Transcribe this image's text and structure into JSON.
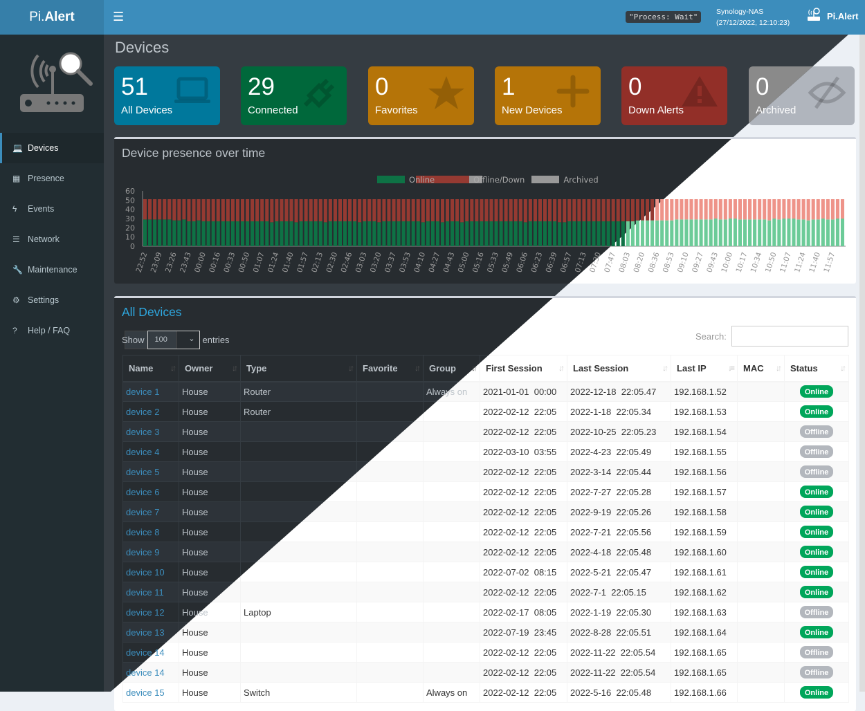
{
  "header": {
    "logo_prefix": "Pi.",
    "logo_main": "Alert",
    "process_status": "\"Process: Wait\"",
    "host_name": "Synology-NAS",
    "host_time": "(27/12/2022, 12:10:23)",
    "brand": "Pi.Alert"
  },
  "sidebar": {
    "items": [
      {
        "label": "Devices",
        "icon": "laptop-icon",
        "glyph": "💻",
        "active": true
      },
      {
        "label": "Presence",
        "icon": "calendar-icon",
        "glyph": "▦"
      },
      {
        "label": "Events",
        "icon": "bolt-icon",
        "glyph": "ϟ"
      },
      {
        "label": "Network",
        "icon": "server-icon",
        "glyph": "☰"
      },
      {
        "label": "Maintenance",
        "icon": "wrench-icon",
        "glyph": "🔧"
      },
      {
        "label": "Settings",
        "icon": "gear-icon",
        "glyph": "⚙"
      },
      {
        "label": "Help / FAQ",
        "icon": "question-icon",
        "glyph": "?"
      }
    ]
  },
  "page_title": "Devices",
  "info_boxes": [
    {
      "value": "51",
      "label": "All Devices",
      "color": "#00789c",
      "icon": "laptop-icon"
    },
    {
      "value": "29",
      "label": "Connected",
      "color": "#00683b",
      "icon": "plug-icon"
    },
    {
      "value": "0",
      "label": "Favorites",
      "color": "#b57408",
      "icon": "star-icon"
    },
    {
      "value": "1",
      "label": "New Devices",
      "color": "#b57408",
      "icon": "plus-icon"
    },
    {
      "value": "0",
      "label": "Down Alerts",
      "color": "#922f28",
      "icon": "warning-icon"
    },
    {
      "value": "0",
      "label": "Archived",
      "color": "#8a8a8a",
      "color_light": "#b0b5bd",
      "icon": "eye-slash-icon"
    }
  ],
  "presence": {
    "title": "Device presence over time"
  },
  "chart_data": {
    "type": "bar",
    "stacked": true,
    "title": "Device presence over time",
    "ylim": [
      0,
      60
    ],
    "yticks": [
      0,
      10,
      20,
      30,
      40,
      50,
      60
    ],
    "legend_position": "top",
    "series_names": [
      "Online",
      "Offline/Down",
      "Archived"
    ],
    "colors": {
      "online_dark": "#0e7245",
      "offline_dark": "#953a32",
      "online_light": "#6ccb98",
      "offline_light": "#ee9389",
      "archived": "#999999"
    },
    "total_devices": 51,
    "tick_labels": [
      "22:52",
      "23:09",
      "23:26",
      "23:43",
      "00:00",
      "00:16",
      "00:33",
      "00:50",
      "01:07",
      "01:24",
      "01:40",
      "01:57",
      "02:13",
      "02:30",
      "02:46",
      "03:03",
      "03:20",
      "03:37",
      "03:53",
      "04:10",
      "04:27",
      "04:43",
      "05:00",
      "05:16",
      "05:33",
      "05:49",
      "06:06",
      "06:23",
      "06:39",
      "06:57",
      "07:13",
      "07:30",
      "07:47",
      "08:03",
      "08:20",
      "08:36",
      "08:53",
      "09:10",
      "09:27",
      "09:43",
      "10:00",
      "10:17",
      "10:34",
      "10:50",
      "11:07",
      "11:24",
      "11:40",
      "11:57"
    ],
    "online": [
      29,
      29,
      29,
      29,
      29,
      29,
      28,
      28,
      29,
      27,
      27,
      28,
      27,
      27,
      27,
      27,
      27,
      27,
      27,
      27,
      27,
      27,
      27,
      27,
      27,
      27,
      26,
      27,
      27,
      27,
      27,
      26,
      27,
      27,
      27,
      27,
      27,
      26,
      27,
      27,
      27,
      27,
      27,
      27,
      26,
      27,
      27,
      27,
      26,
      27,
      27,
      27,
      27,
      27,
      27,
      27,
      27,
      26,
      27,
      27,
      27,
      26,
      27,
      27,
      27,
      26,
      27,
      27,
      27,
      27,
      27,
      27,
      27,
      27,
      27,
      27,
      27,
      27,
      26,
      27,
      27,
      27,
      27,
      27,
      27,
      26,
      26,
      27,
      27,
      27,
      27,
      27,
      27,
      27,
      27,
      27,
      27,
      27,
      27,
      27,
      27,
      28,
      28,
      28,
      28,
      28,
      28,
      28,
      28,
      29,
      29,
      29,
      29,
      29,
      29,
      29,
      29,
      30,
      29,
      29,
      30,
      30,
      29,
      29,
      29,
      29,
      29,
      29,
      28,
      30,
      29,
      30,
      30,
      30,
      29,
      29,
      28,
      29,
      29,
      30,
      29,
      29,
      30,
      30
    ]
  },
  "devices": {
    "title": "All Devices",
    "show_label": "Show",
    "entries_value": "100",
    "entries_label": "entries",
    "search_label": "Search:",
    "search_value": "",
    "columns": [
      "Name",
      "Owner",
      "Type",
      "Favorite",
      "Group",
      "First Session",
      "Last Session",
      "Last IP",
      "MAC",
      "Status"
    ],
    "rows": [
      [
        "device 1",
        "House",
        "Router",
        "",
        "Always on",
        "2021-01-01  00:00",
        "2022-12-18  22:05.47",
        "192.168.1.52",
        "",
        "Online"
      ],
      [
        "device 2",
        "House",
        "Router",
        "",
        "",
        "2022-02-12  22:05",
        "2022-1-18  22:05.34",
        "192.168.1.53",
        "",
        "Online"
      ],
      [
        "device 3",
        "House",
        "",
        "",
        "",
        "2022-02-12  22:05",
        "2022-10-25  22:05.23",
        "192.168.1.54",
        "",
        "Offline"
      ],
      [
        "device 4",
        "House",
        "",
        "",
        "",
        "2022-03-10  03:55",
        "2022-4-23  22:05.49",
        "192.168.1.55",
        "",
        "Offline"
      ],
      [
        "device 5",
        "House",
        "",
        "",
        "",
        "2022-02-12  22:05",
        "2022-3-14  22:05.44",
        "192.168.1.56",
        "",
        "Offline"
      ],
      [
        "device 6",
        "House",
        "",
        "",
        "",
        "2022-02-12  22:05",
        "2022-7-27  22:05.28",
        "192.168.1.57",
        "",
        "Online"
      ],
      [
        "device 7",
        "House",
        "",
        "",
        "",
        "2022-02-12  22:05",
        "2022-9-19  22:05.26",
        "192.168.1.58",
        "",
        "Online"
      ],
      [
        "device 8",
        "House",
        "",
        "",
        "",
        "2022-02-12  22:05",
        "2022-7-21  22:05.56",
        "192.168.1.59",
        "",
        "Online"
      ],
      [
        "device 9",
        "House",
        "",
        "",
        "",
        "2022-02-12  22:05",
        "2022-4-18  22:05.48",
        "192.168.1.60",
        "",
        "Online"
      ],
      [
        "device 10",
        "House",
        "",
        "",
        "",
        "2022-07-02  08:15",
        "2022-5-21  22:05.47",
        "192.168.1.61",
        "",
        "Online"
      ],
      [
        "device 11",
        "House",
        "",
        "",
        "",
        "2022-02-12  22:05",
        "2022-7-1  22:05.15",
        "192.168.1.62",
        "",
        "Online"
      ],
      [
        "device 12",
        "House",
        "Laptop",
        "",
        "",
        "2022-02-17  08:05",
        "2022-1-19  22:05.30",
        "192.168.1.63",
        "",
        "Offline"
      ],
      [
        "device 13",
        "House",
        "",
        "",
        "",
        "2022-07-19  23:45",
        "2022-8-28  22:05.51",
        "192.168.1.64",
        "",
        "Online"
      ],
      [
        "device 14",
        "House",
        "",
        "",
        "",
        "2022-02-12  22:05",
        "2022-11-22  22:05.54",
        "192.168.1.65",
        "",
        "Offline"
      ],
      [
        "device 14",
        "House",
        "",
        "",
        "",
        "2022-02-12  22:05",
        "2022-11-22  22:05.54",
        "192.168.1.65",
        "",
        "Offline"
      ],
      [
        "device 15",
        "House",
        "Switch",
        "",
        "Always on",
        "2022-02-12  22:05",
        "2022-5-16  22:05.48",
        "192.168.1.66",
        "",
        "Online"
      ]
    ]
  }
}
